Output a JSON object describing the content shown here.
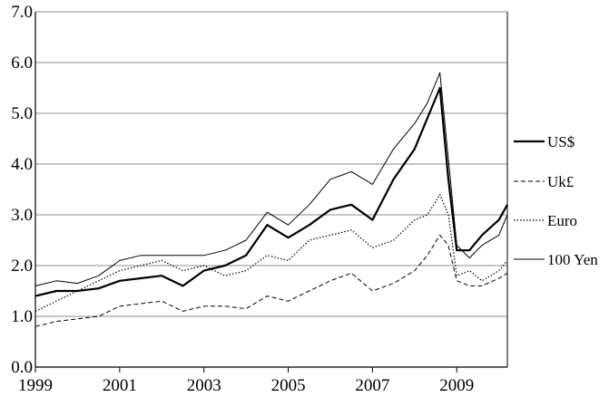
{
  "chart_data": {
    "type": "line",
    "title": "",
    "xlabel": "",
    "ylabel": "",
    "xlim": [
      1999,
      2010.2
    ],
    "ylim": [
      0,
      7
    ],
    "grid": true,
    "legend_position": "right",
    "x_ticks": [
      "1999",
      "2001",
      "2003",
      "2005",
      "2007",
      "2009"
    ],
    "y_ticks": [
      "0.0",
      "1.0",
      "2.0",
      "3.0",
      "4.0",
      "5.0",
      "6.0",
      "7.0"
    ],
    "series": [
      {
        "name": "US$",
        "style": "solid-bold",
        "color": "#000000",
        "x": [
          1999,
          1999.5,
          2000,
          2000.5,
          2001,
          2001.5,
          2002,
          2002.5,
          2003,
          2003.5,
          2004,
          2004.5,
          2005,
          2005.5,
          2006,
          2006.5,
          2007,
          2007.5,
          2008,
          2008.3,
          2008.6,
          2008.8,
          2009,
          2009.3,
          2009.6,
          2010,
          2010.2
        ],
        "values": [
          1.4,
          1.5,
          1.5,
          1.55,
          1.7,
          1.75,
          1.8,
          1.6,
          1.9,
          2.0,
          2.2,
          2.8,
          2.55,
          2.8,
          3.1,
          3.2,
          2.9,
          3.7,
          4.3,
          4.9,
          5.5,
          3.7,
          2.3,
          2.3,
          2.6,
          2.9,
          3.2
        ]
      },
      {
        "name": "Uk£",
        "style": "dashed",
        "color": "#000000",
        "x": [
          1999,
          1999.5,
          2000,
          2000.5,
          2001,
          2001.5,
          2002,
          2002.5,
          2003,
          2003.5,
          2004,
          2004.5,
          2005,
          2005.5,
          2006,
          2006.5,
          2007,
          2007.5,
          2008,
          2008.3,
          2008.6,
          2008.8,
          2009,
          2009.3,
          2009.6,
          2010,
          2010.2
        ],
        "values": [
          0.8,
          0.9,
          0.95,
          1.0,
          1.2,
          1.25,
          1.3,
          1.1,
          1.2,
          1.2,
          1.15,
          1.4,
          1.3,
          1.5,
          1.7,
          1.85,
          1.5,
          1.65,
          1.9,
          2.2,
          2.6,
          2.4,
          1.7,
          1.6,
          1.6,
          1.75,
          1.85
        ]
      },
      {
        "name": "Euro",
        "style": "dotted",
        "color": "#000000",
        "x": [
          1999,
          1999.5,
          2000,
          2000.5,
          2001,
          2001.5,
          2002,
          2002.5,
          2003,
          2003.5,
          2004,
          2004.5,
          2005,
          2005.5,
          2006,
          2006.5,
          2007,
          2007.5,
          2008,
          2008.3,
          2008.6,
          2008.8,
          2009,
          2009.3,
          2009.6,
          2010,
          2010.2
        ],
        "values": [
          1.1,
          1.3,
          1.5,
          1.7,
          1.9,
          2.0,
          2.1,
          1.9,
          2.0,
          1.8,
          1.9,
          2.2,
          2.1,
          2.5,
          2.6,
          2.7,
          2.35,
          2.5,
          2.9,
          3.0,
          3.4,
          3.0,
          1.8,
          1.9,
          1.7,
          1.9,
          2.1
        ]
      },
      {
        "name": "100 Yen",
        "style": "solid-thin",
        "color": "#000000",
        "x": [
          1999,
          1999.5,
          2000,
          2000.5,
          2001,
          2001.5,
          2002,
          2002.5,
          2003,
          2003.5,
          2004,
          2004.5,
          2005,
          2005.5,
          2006,
          2006.5,
          2007,
          2007.5,
          2008,
          2008.3,
          2008.6,
          2008.8,
          2009,
          2009.3,
          2009.6,
          2010,
          2010.2
        ],
        "values": [
          1.6,
          1.7,
          1.65,
          1.8,
          2.1,
          2.2,
          2.2,
          2.2,
          2.2,
          2.3,
          2.5,
          3.05,
          2.8,
          3.2,
          3.7,
          3.85,
          3.6,
          4.3,
          4.8,
          5.2,
          5.8,
          4.1,
          2.4,
          2.15,
          2.4,
          2.6,
          3.0
        ]
      }
    ]
  }
}
